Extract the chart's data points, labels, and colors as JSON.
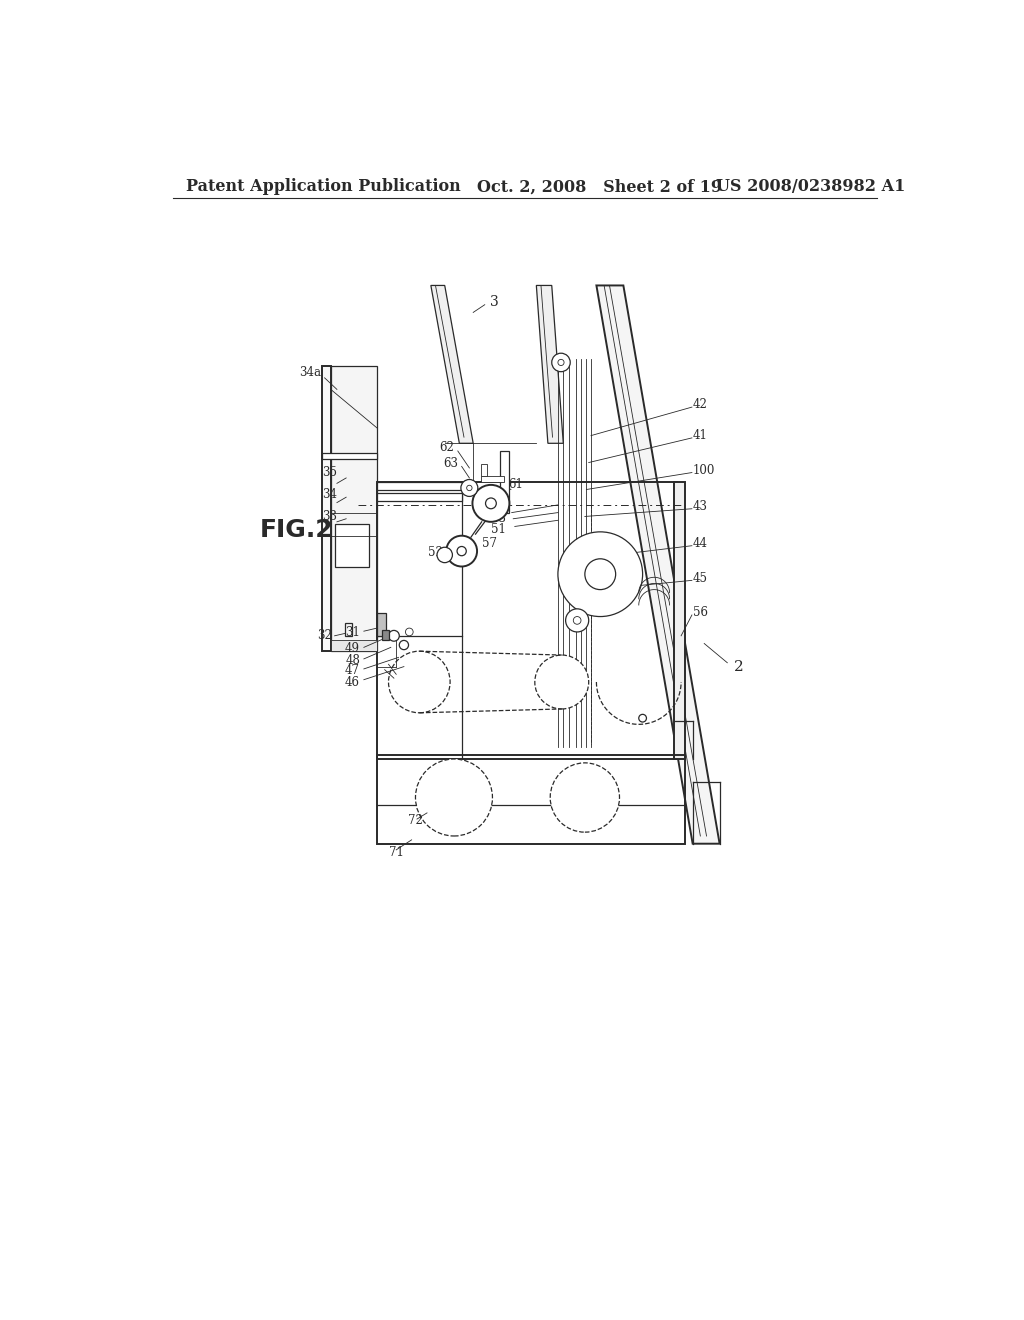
{
  "bg_color": "#ffffff",
  "line_color": "#2a2a2a",
  "header_left": "Patent Application Publication",
  "header_mid": "Oct. 2, 2008   Sheet 2 of 19",
  "header_right": "US 2008/0238982 A1",
  "fig_label": "FIG.2",
  "header_font_size": 11.5,
  "fig_label_font_size": 18
}
